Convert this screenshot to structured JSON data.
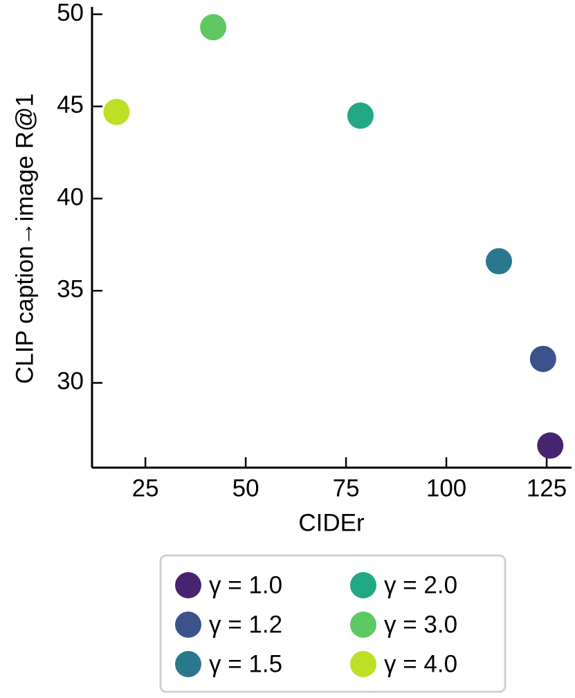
{
  "chart_data": {
    "type": "scatter",
    "xlabel": "CIDEr",
    "ylabel": "CLIP caption→image R@1",
    "xlim": [
      11.7,
      131.2
    ],
    "xticks": [
      25,
      50,
      75,
      100,
      125
    ],
    "ylim": [
      25.4,
      50.4
    ],
    "yticks": [
      30,
      35,
      40,
      45,
      50
    ],
    "tick_direction": "in",
    "legend": "bottom",
    "series": [
      {
        "name": "γ = 1.0",
        "color": "#46246e",
        "x": [
          125.9
        ],
        "values": [
          26.6
        ]
      },
      {
        "name": "γ = 1.2",
        "color": "#3b528b",
        "x": [
          124.1
        ],
        "values": [
          31.3
        ]
      },
      {
        "name": "γ = 1.5",
        "color": "#2a788e",
        "x": [
          113.1
        ],
        "values": [
          36.6
        ]
      },
      {
        "name": "γ = 2.0",
        "color": "#22a884",
        "x": [
          78.6
        ],
        "values": [
          44.5
        ]
      },
      {
        "name": "γ = 3.0",
        "color": "#5ec962",
        "x": [
          41.9
        ],
        "values": [
          49.3
        ]
      },
      {
        "name": "γ = 4.0",
        "color": "#bddf26",
        "x": [
          17.8
        ],
        "values": [
          44.7
        ]
      }
    ]
  }
}
